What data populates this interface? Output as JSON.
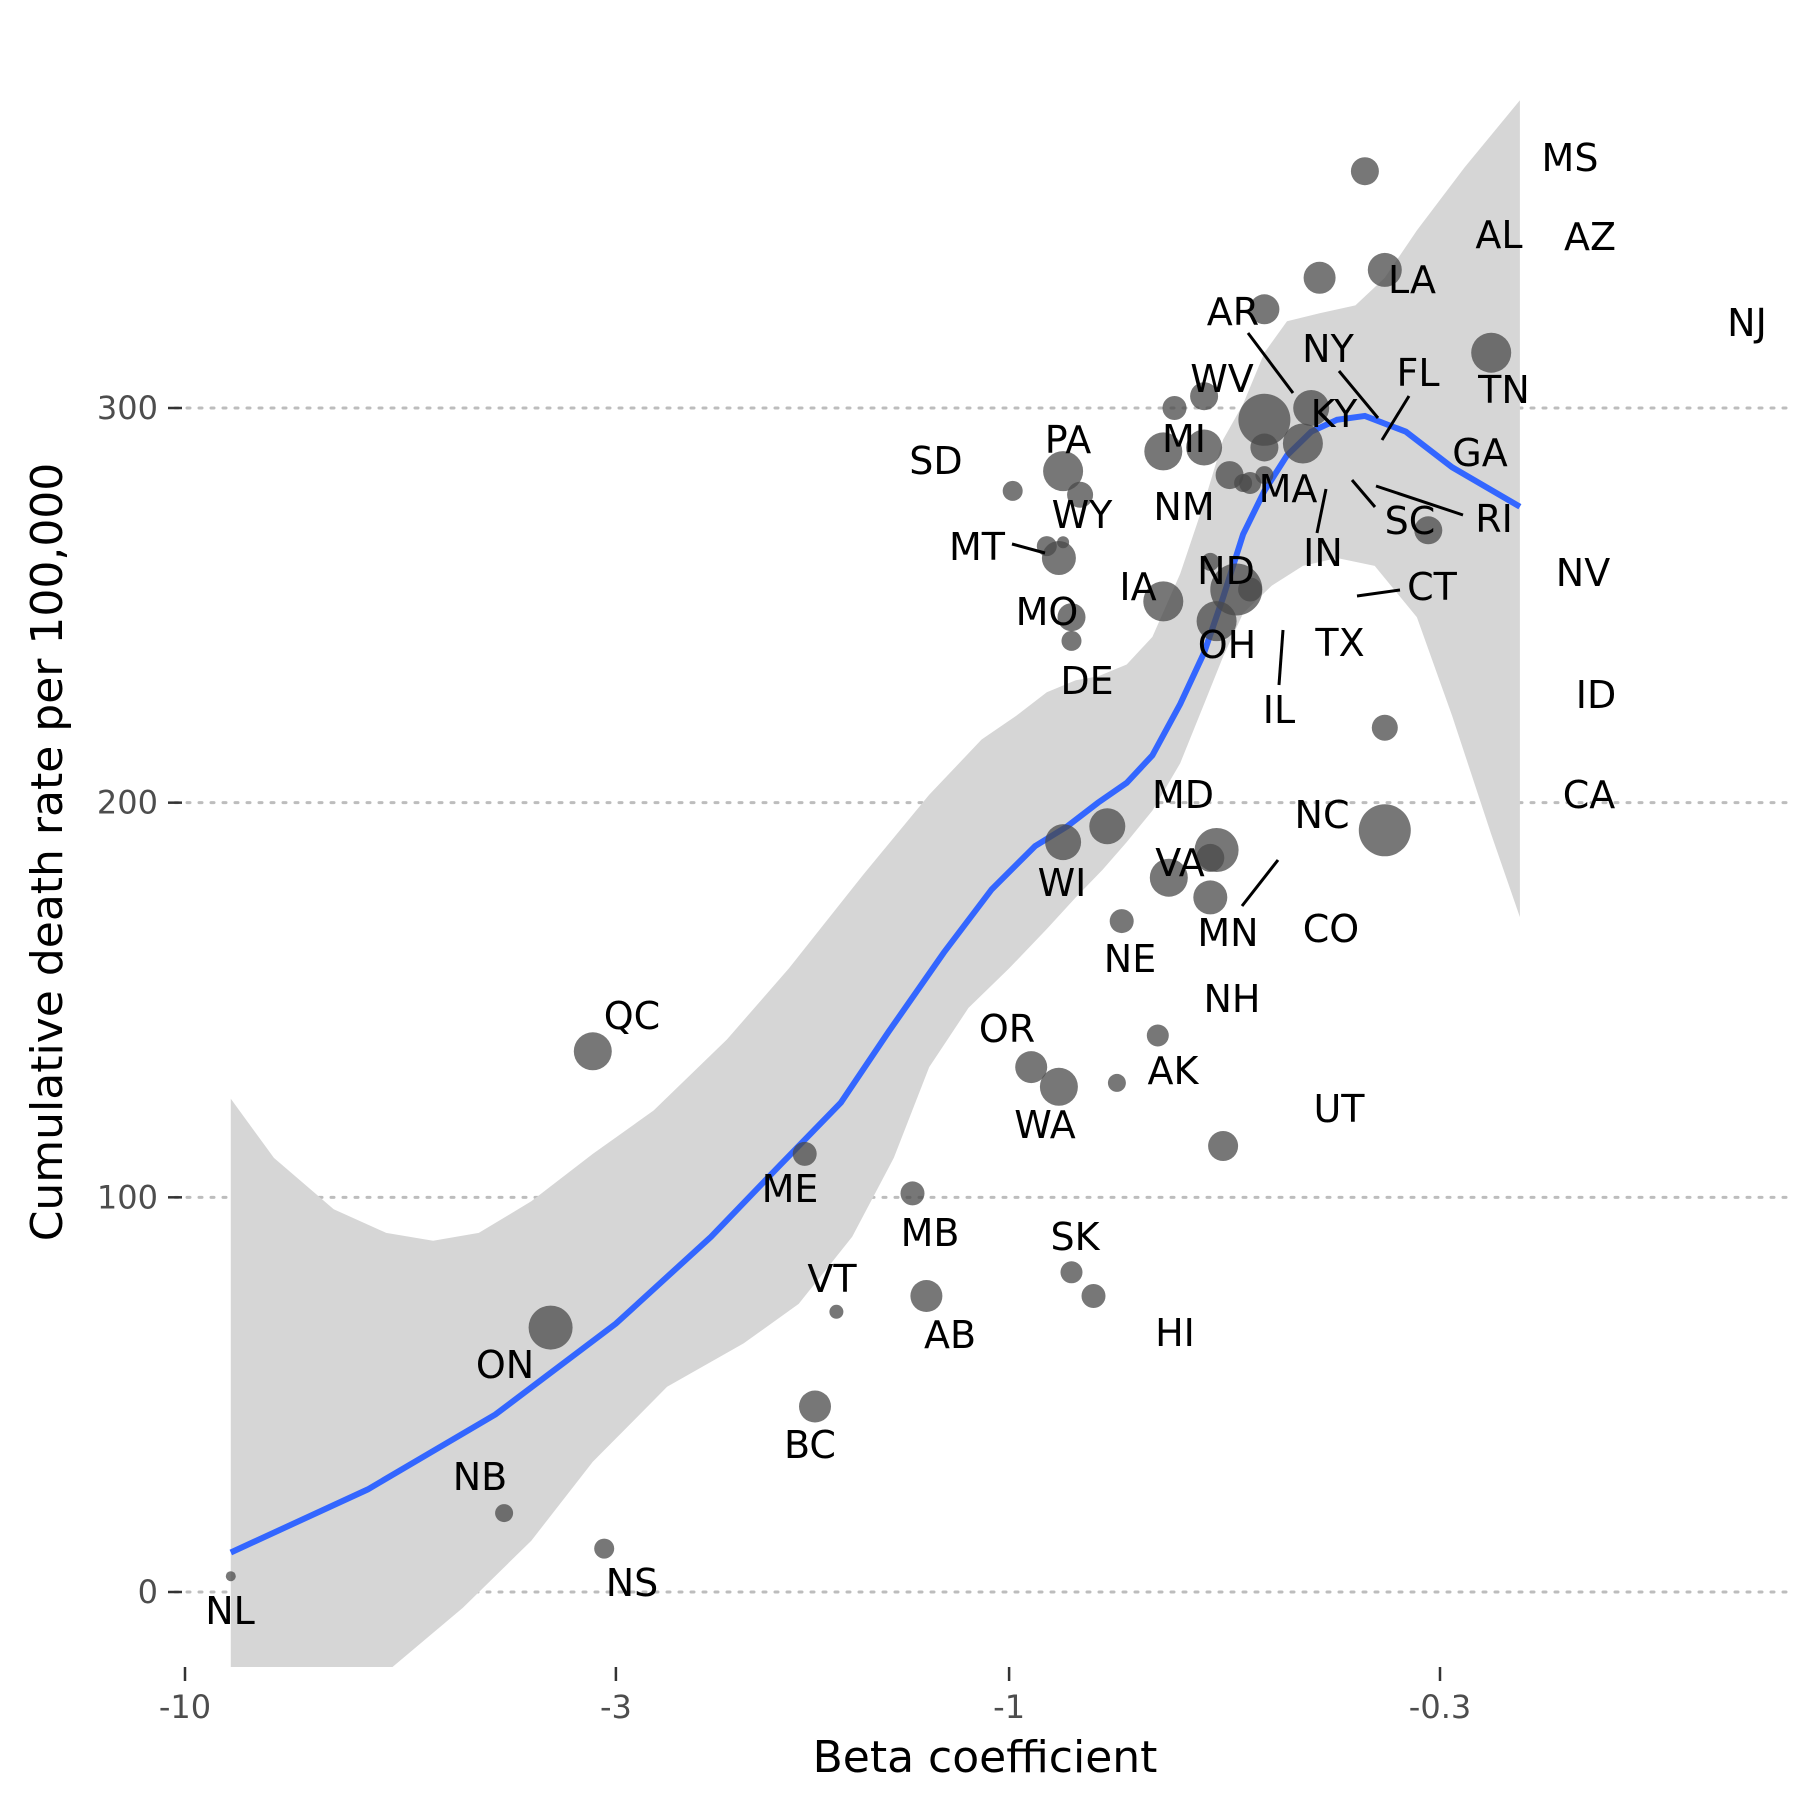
{
  "chart_data": {
    "type": "scatter",
    "title": "",
    "xlabel": "Beta coefficient",
    "ylabel": "Cumulative death rate per 100,000",
    "x_scale": "log",
    "x_ticks": [
      {
        "value": -10,
        "label": "-10"
      },
      {
        "value": -3,
        "label": "-3"
      },
      {
        "value": -1,
        "label": "-1"
      },
      {
        "value": -0.3,
        "label": "-0.3"
      }
    ],
    "y_ticks": [
      {
        "value": 0,
        "label": "0"
      },
      {
        "value": 100,
        "label": "100"
      },
      {
        "value": 200,
        "label": "200"
      },
      {
        "value": 300,
        "label": "300"
      }
    ],
    "ylim": [
      -19,
      378
    ],
    "grid": "horizontal dotted",
    "colors": {
      "points": "#4a4a4a",
      "smooth": "#3366ff",
      "ribbon": "#d6d6d6"
    },
    "points": [
      {
        "label": "NL",
        "x": -8.8,
        "y": 4
      },
      {
        "label": "NB",
        "x": -4.1,
        "y": 20
      },
      {
        "label": "NS",
        "x": -3.1,
        "y": 11
      },
      {
        "label": "ON",
        "x": -3.6,
        "y": 67
      },
      {
        "label": "QC",
        "x": -3.2,
        "y": 137
      },
      {
        "label": "BC",
        "x": -1.72,
        "y": 47
      },
      {
        "label": "VT",
        "x": -1.62,
        "y": 71
      },
      {
        "label": "ME",
        "x": -1.77,
        "y": 111
      },
      {
        "label": "MB",
        "x": -1.31,
        "y": 101
      },
      {
        "label": "AB",
        "x": -1.26,
        "y": 75
      },
      {
        "label": "OR",
        "x": -0.94,
        "y": 133
      },
      {
        "label": "WA",
        "x": -0.87,
        "y": 128
      },
      {
        "label": "SK",
        "x": -0.84,
        "y": 81
      },
      {
        "label": "HI",
        "x": -0.79,
        "y": 75
      },
      {
        "label": "AK",
        "x": -0.74,
        "y": 129
      },
      {
        "label": "NE",
        "x": -0.73,
        "y": 170
      },
      {
        "label": "NH",
        "x": -0.66,
        "y": 141
      },
      {
        "label": "UT",
        "x": -0.55,
        "y": 113
      },
      {
        "label": "WI",
        "x": -0.86,
        "y": 190
      },
      {
        "label": "MD",
        "x": -0.76,
        "y": 194
      },
      {
        "label": "VA",
        "x": -0.64,
        "y": 181
      },
      {
        "label": "NC",
        "x": -0.56,
        "y": 188
      },
      {
        "label": "MN",
        "x": -0.57,
        "y": 186
      },
      {
        "label": "CO",
        "x": -0.57,
        "y": 176
      },
      {
        "label": "DE",
        "x": -0.84,
        "y": 241
      },
      {
        "label": "IA",
        "x": -0.84,
        "y": 247
      },
      {
        "label": "MO",
        "x": -0.87,
        "y": 262
      },
      {
        "label": "MT",
        "x": -0.9,
        "y": 265
      },
      {
        "label": "WY",
        "x": -0.86,
        "y": 266
      },
      {
        "label": "SD",
        "x": -0.99,
        "y": 279
      },
      {
        "label": "PA",
        "x": -0.86,
        "y": 284
      },
      {
        "label": "NM",
        "x": -0.82,
        "y": 278
      },
      {
        "label": "MI",
        "x": -0.65,
        "y": 289
      },
      {
        "label": "WV",
        "x": -0.63,
        "y": 300
      },
      {
        "label": "AR",
        "x": -0.58,
        "y": 303
      },
      {
        "label": "KY",
        "x": -0.58,
        "y": 290
      },
      {
        "label": "NY",
        "x": -0.49,
        "y": 297
      },
      {
        "label": "FL",
        "x": -0.49,
        "y": 290
      },
      {
        "label": "MA",
        "x": -0.54,
        "y": 283
      },
      {
        "label": "SC",
        "x": -0.51,
        "y": 281
      },
      {
        "label": "RI",
        "x": -0.49,
        "y": 283
      },
      {
        "label": "IN",
        "x": -0.52,
        "y": 281
      },
      {
        "label": "ND",
        "x": -0.65,
        "y": 251
      },
      {
        "label": "OH",
        "x": -0.56,
        "y": 246
      },
      {
        "label": "IL",
        "x": -0.57,
        "y": 261
      },
      {
        "label": "TX",
        "x": -0.53,
        "y": 254
      },
      {
        "label": "CT",
        "x": -0.51,
        "y": 254
      },
      {
        "label": "GA",
        "x": -0.44,
        "y": 291
      },
      {
        "label": "TN",
        "x": -0.43,
        "y": 300
      },
      {
        "label": "LA",
        "x": -0.49,
        "y": 325
      },
      {
        "label": "AL",
        "x": -0.42,
        "y": 333
      },
      {
        "label": "MS",
        "x": -0.37,
        "y": 360
      },
      {
        "label": "AZ",
        "x": -0.35,
        "y": 335
      },
      {
        "label": "NJ",
        "x": -0.26,
        "y": 314
      },
      {
        "label": "NV",
        "x": -0.31,
        "y": 269
      },
      {
        "label": "ID",
        "x": -0.35,
        "y": 219
      },
      {
        "label": "CA",
        "x": -0.35,
        "y": 193
      }
    ]
  }
}
